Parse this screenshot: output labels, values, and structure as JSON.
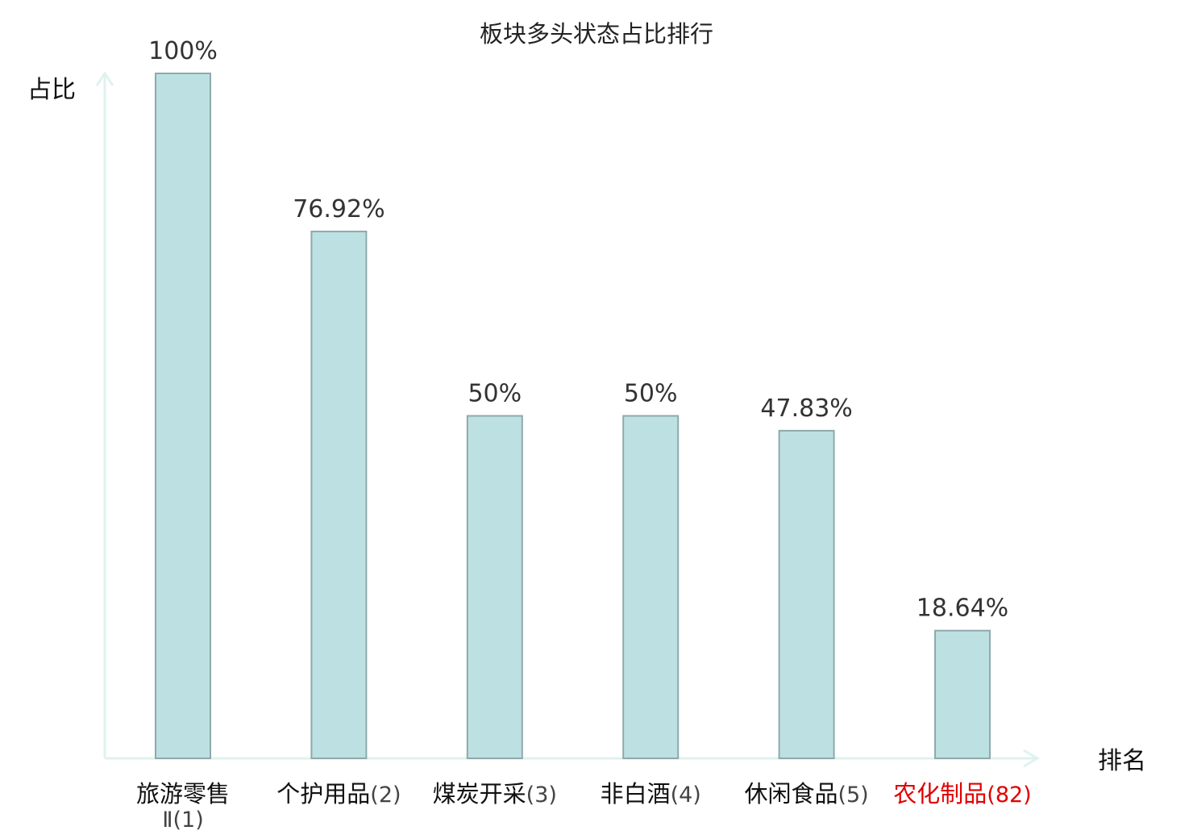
{
  "chart_data": {
    "type": "bar",
    "title": "板块多头状态占比排行",
    "ylabel": "占比",
    "xlabel": "排名",
    "ylim": [
      0,
      100
    ],
    "grid": false,
    "legend": "none",
    "categories": [
      {
        "name": "旅游零售",
        "name2": "Ⅱ",
        "rank": "(1)",
        "value": 100,
        "label": "100%",
        "highlight": false
      },
      {
        "name": "个护用品",
        "rank": "(2)",
        "value": 76.92,
        "label": "76.92%",
        "highlight": false
      },
      {
        "name": "煤炭开采",
        "rank": "(3)",
        "value": 50,
        "label": "50%",
        "highlight": false
      },
      {
        "name": "非白酒",
        "rank": "(4)",
        "value": 50,
        "label": "50%",
        "highlight": false
      },
      {
        "name": "休闲食品",
        "rank": "(5)",
        "value": 47.83,
        "label": "47.83%",
        "highlight": false
      },
      {
        "name": "农化制品",
        "rank": "(82)",
        "value": 18.64,
        "label": "18.64%",
        "highlight": true
      }
    ],
    "colors": {
      "bar_fill": "#bde1e3",
      "bar_stroke": "#8fa9ab",
      "axis": "#dff2ef",
      "text": "#111111",
      "rank_text": "#444444",
      "highlight": "#e00000"
    }
  }
}
